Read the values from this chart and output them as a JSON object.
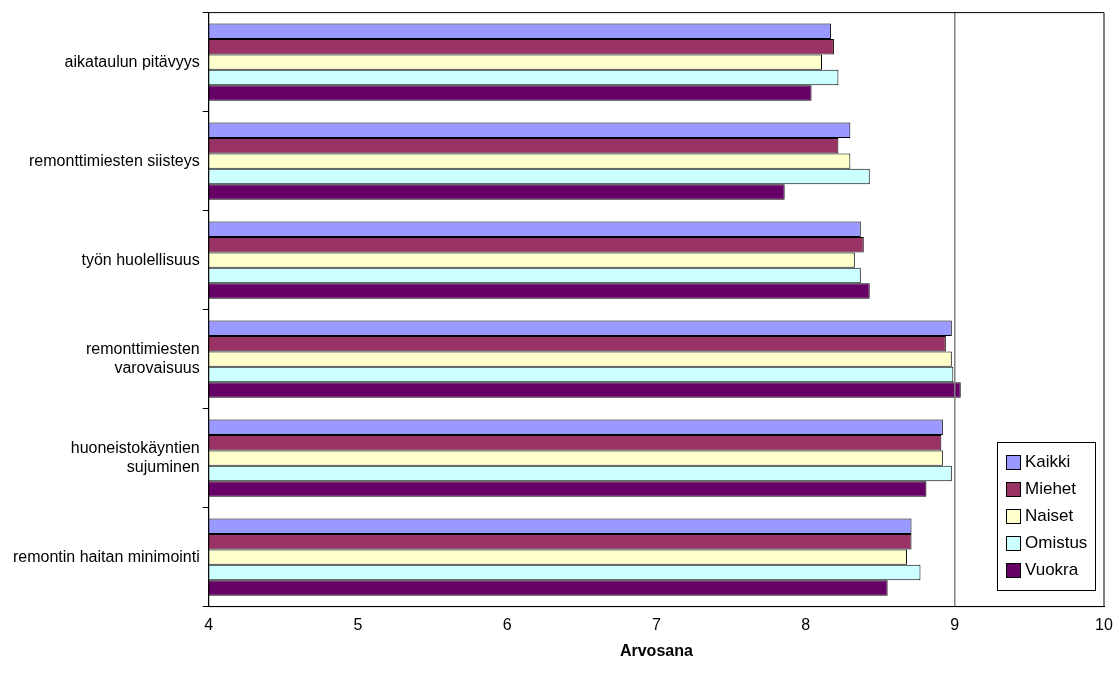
{
  "chart_data": {
    "type": "bar",
    "orientation": "horizontal",
    "xlabel": "Arvosana",
    "categories": [
      "aikataulun pitävyys",
      "remonttimiesten siisteys",
      "työn huolellisuus",
      "remonttimiesten varovaisuus",
      "huoneistokäyntien sujuminen",
      "remontin haitan minimointi"
    ],
    "series": [
      {
        "name": "Kaikki",
        "color": "#9999ff",
        "values": [
          8.17,
          8.3,
          8.37,
          8.98,
          8.92,
          8.71
        ]
      },
      {
        "name": "Miehet",
        "color": "#993366",
        "values": [
          8.19,
          8.22,
          8.39,
          8.94,
          8.91,
          8.71
        ]
      },
      {
        "name": "Naiset",
        "color": "#ffffcc",
        "values": [
          8.11,
          8.3,
          8.33,
          8.98,
          8.92,
          8.68
        ]
      },
      {
        "name": "Omistus",
        "color": "#ccffff",
        "values": [
          8.22,
          8.43,
          8.37,
          8.99,
          8.98,
          8.77
        ]
      },
      {
        "name": "Vuokra",
        "color": "#660066",
        "values": [
          8.04,
          7.86,
          8.43,
          9.04,
          8.81,
          8.55
        ]
      }
    ],
    "xlim": [
      4,
      10
    ],
    "xticks": [
      4,
      5,
      6,
      7,
      8,
      9,
      10
    ],
    "ref_lines": [
      {
        "axis": "x",
        "value": 9,
        "color": "#808080"
      }
    ],
    "grid": false,
    "legend": "bottom right"
  }
}
